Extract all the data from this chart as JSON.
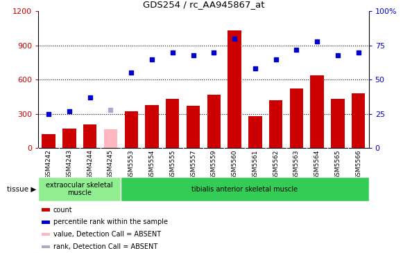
{
  "title": "GDS254 / rc_AA945867_at",
  "categories": [
    "GSM4242",
    "GSM4243",
    "GSM4244",
    "GSM4245",
    "GSM5553",
    "GSM5554",
    "GSM5555",
    "GSM5557",
    "GSM5559",
    "GSM5560",
    "GSM5561",
    "GSM5562",
    "GSM5563",
    "GSM5564",
    "GSM5565",
    "GSM5566"
  ],
  "bar_values": [
    120,
    170,
    210,
    null,
    320,
    380,
    430,
    370,
    470,
    1030,
    280,
    420,
    520,
    640,
    430,
    480
  ],
  "bar_absent": [
    null,
    null,
    null,
    165,
    null,
    null,
    null,
    null,
    null,
    null,
    null,
    null,
    null,
    null,
    null,
    null
  ],
  "rank_values": [
    25,
    27,
    37,
    null,
    55,
    65,
    70,
    68,
    70,
    80,
    58,
    65,
    72,
    78,
    68,
    70
  ],
  "rank_absent": [
    null,
    null,
    null,
    28,
    null,
    null,
    null,
    null,
    null,
    null,
    null,
    null,
    null,
    null,
    null,
    null
  ],
  "bar_color": "#cc0000",
  "bar_absent_color": "#ffb6c1",
  "rank_color": "#0000cc",
  "rank_absent_color": "#aaaacc",
  "left_ylim": [
    0,
    1200
  ],
  "right_ylim": [
    0,
    100
  ],
  "left_yticks": [
    0,
    300,
    600,
    900,
    1200
  ],
  "right_yticks": [
    0,
    25,
    50,
    75,
    100
  ],
  "right_yticklabels": [
    "0",
    "25",
    "50",
    "75",
    "100%"
  ],
  "grid_values": [
    300,
    600,
    900
  ],
  "tissue_groups": [
    {
      "label": "extraocular skeletal\nmuscle",
      "start": 0,
      "end": 4,
      "color": "#90ee90"
    },
    {
      "label": "tibialis anterior skeletal muscle",
      "start": 4,
      "end": 16,
      "color": "#33cc55"
    }
  ],
  "legend_items": [
    {
      "color": "#cc0000",
      "label": "count"
    },
    {
      "color": "#0000cc",
      "label": "percentile rank within the sample"
    },
    {
      "color": "#ffb6c1",
      "label": "value, Detection Call = ABSENT"
    },
    {
      "color": "#aaaacc",
      "label": "rank, Detection Call = ABSENT"
    }
  ],
  "tissue_label": "tissue",
  "background_color": "#ffffff",
  "axis_bg_color": "#ffffff",
  "tick_bg_color": "#cccccc"
}
